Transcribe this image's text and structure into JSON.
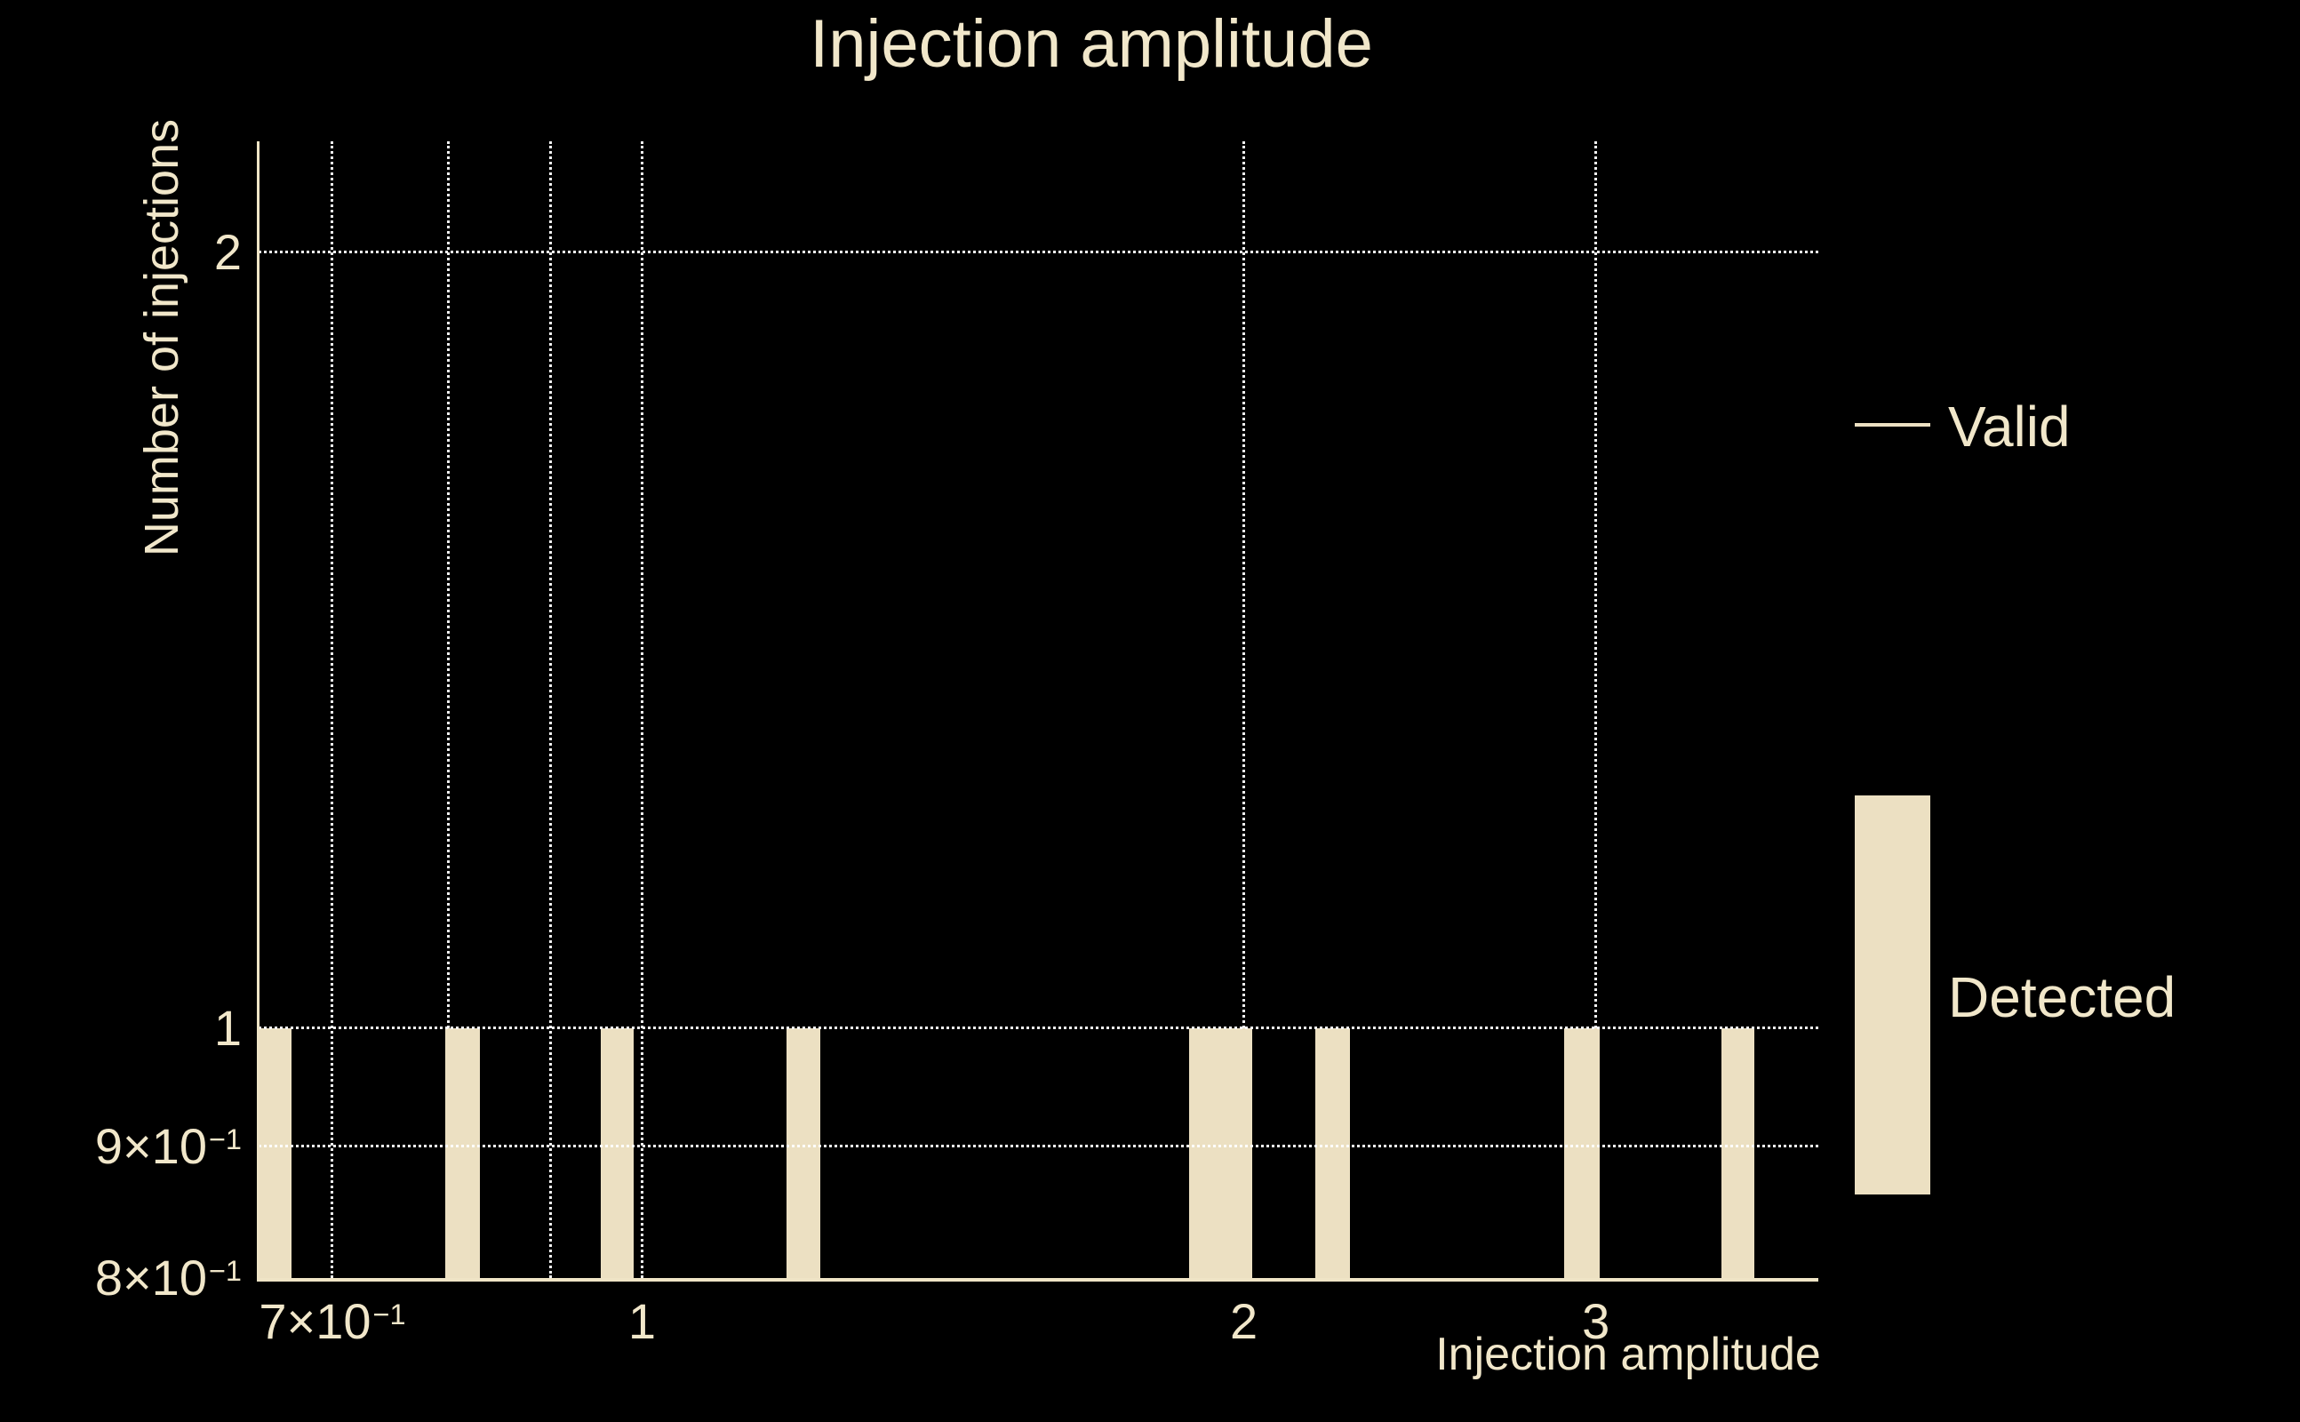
{
  "title": {
    "text": "Injection amplitude"
  },
  "legend": {
    "valid_label": "Valid",
    "detected_label": "Detected"
  },
  "colors": {
    "background": "#000000",
    "bar_fill": "#ece0c2",
    "text": "#f1e7ca",
    "axis": "#efe4c6",
    "gridline": "#ffffff"
  },
  "chart_data": {
    "type": "bar",
    "title": "Injection amplitude",
    "xlabel": "Injection amplitude",
    "ylabel": "Number of injections",
    "xscale": "log",
    "yscale": "log",
    "xlim": [
      0.643,
      3.876
    ],
    "ylim": [
      0.8,
      2.208
    ],
    "grid": true,
    "x_gridlines": [
      0.7,
      0.8,
      0.9,
      1,
      2,
      3
    ],
    "y_gridlines": [
      0.9,
      1,
      2
    ],
    "x_ticks": [
      {
        "v": 0.7,
        "base": "7×10",
        "exp": "−1"
      },
      {
        "v": 1,
        "base": "1",
        "exp": null
      },
      {
        "v": 2,
        "base": "2",
        "exp": null
      },
      {
        "v": 3,
        "base": "3",
        "exp": null
      }
    ],
    "y_ticks": [
      {
        "v": 2,
        "base": "2",
        "exp": null
      },
      {
        "v": 1,
        "base": "1",
        "exp": null
      },
      {
        "v": 0.9,
        "base": "9×10",
        "exp": "−1"
      },
      {
        "v": 0.8,
        "base": "8×10",
        "exp": "−1"
      }
    ],
    "legend_entries": [
      {
        "name": "Valid",
        "swatch": "line"
      },
      {
        "name": "Detected",
        "swatch": "box"
      }
    ],
    "series": [
      {
        "name": "Valid",
        "style": "line",
        "color": "#ece0c2"
      },
      {
        "name": "Detected",
        "style": "bar",
        "color": "#ece0c2",
        "bars": [
          {
            "x0": 0.643,
            "x1": 0.668,
            "count": 1
          },
          {
            "x0": 0.797,
            "x1": 0.83,
            "count": 1
          },
          {
            "x0": 0.954,
            "x1": 0.99,
            "count": 1
          },
          {
            "x0": 1.181,
            "x1": 1.228,
            "count": 1
          },
          {
            "x0": 1.878,
            "x1": 2.02,
            "count": 1
          },
          {
            "x0": 2.172,
            "x1": 2.261,
            "count": 1
          },
          {
            "x0": 2.893,
            "x1": 3.014,
            "count": 1
          },
          {
            "x0": 3.467,
            "x1": 3.602,
            "count": 1
          }
        ]
      }
    ]
  }
}
